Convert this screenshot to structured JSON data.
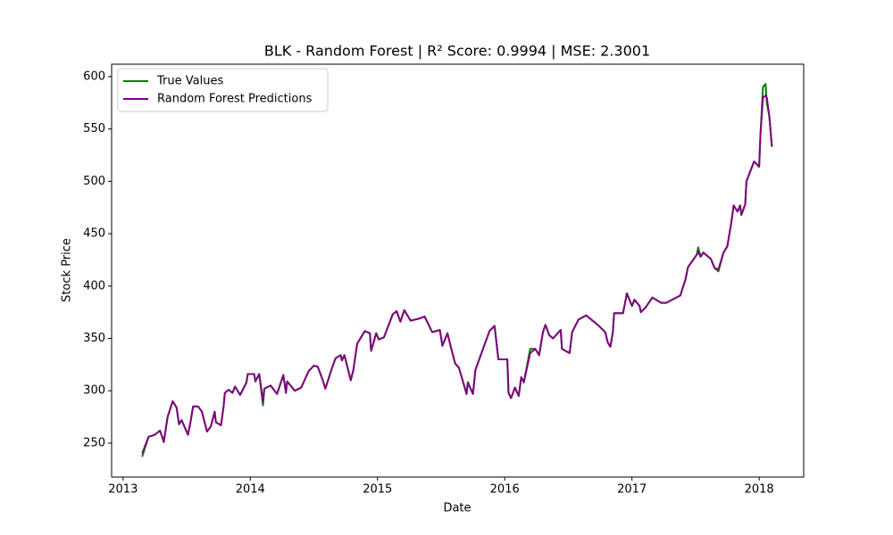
{
  "chart_data": {
    "type": "line",
    "title": "BLK - Random Forest | R² Score: 0.9994 | MSE: 2.3001",
    "xlabel": "Date",
    "ylabel": "Stock Price",
    "x": [
      2013.15,
      2013.2,
      2013.25,
      2013.29,
      2013.31,
      2013.32,
      2013.35,
      2013.39,
      2013.42,
      2013.44,
      2013.46,
      2013.51,
      2013.53,
      2013.55,
      2013.59,
      2013.62,
      2013.66,
      2013.69,
      2013.72,
      2013.73,
      2013.77,
      2013.79,
      2013.8,
      2013.83,
      2013.86,
      2013.88,
      2013.92,
      2013.97,
      2013.98,
      2014.03,
      2014.04,
      2014.07,
      2014.1,
      2014.11,
      2014.16,
      2014.21,
      2014.26,
      2014.28,
      2014.29,
      2014.35,
      2014.4,
      2014.46,
      2014.5,
      2014.53,
      2014.57,
      2014.59,
      2014.64,
      2014.67,
      2014.71,
      2014.72,
      2014.74,
      2014.79,
      2014.81,
      2014.84,
      2014.9,
      2014.94,
      2014.95,
      2014.99,
      2015.01,
      2015.05,
      2015.12,
      2015.15,
      2015.18,
      2015.21,
      2015.26,
      2015.33,
      2015.37,
      2015.43,
      2015.49,
      2015.51,
      2015.55,
      2015.58,
      2015.61,
      2015.64,
      2015.7,
      2015.71,
      2015.75,
      2015.77,
      2015.82,
      2015.88,
      2015.92,
      2015.95,
      2016.02,
      2016.03,
      2016.05,
      2016.08,
      2016.11,
      2016.13,
      2016.15,
      2016.2,
      2016.24,
      2016.27,
      2016.3,
      2016.32,
      2016.35,
      2016.38,
      2016.44,
      2016.45,
      2016.51,
      2016.53,
      2016.58,
      2016.64,
      2016.74,
      2016.79,
      2016.81,
      2016.83,
      2016.85,
      2016.86,
      2016.93,
      2016.96,
      2017.0,
      2017.02,
      2017.06,
      2017.07,
      2017.11,
      2017.16,
      2017.23,
      2017.27,
      2017.38,
      2017.42,
      2017.44,
      2017.51,
      2017.52,
      2017.54,
      2017.56,
      2017.62,
      2017.65,
      2017.68,
      2017.72,
      2017.75,
      2017.78,
      2017.8,
      2017.83,
      2017.85,
      2017.86,
      2017.89,
      2017.9,
      2017.96,
      2018.0,
      2018.01,
      2018.03,
      2018.05,
      2018.06,
      2018.08,
      2018.1
    ],
    "series": [
      {
        "name": "True Values",
        "color": "#008000",
        "values": [
          237,
          256,
          258,
          262,
          255,
          251,
          275,
          290,
          284,
          268,
          272,
          258,
          270,
          285,
          285,
          280,
          261,
          266,
          280,
          270,
          267,
          285,
          298,
          301,
          298,
          304,
          296,
          308,
          316,
          316,
          309,
          316,
          286,
          302,
          305,
          297,
          315,
          298,
          309,
          300,
          303,
          319,
          324,
          323,
          310,
          302,
          321,
          331,
          334,
          329,
          334,
          310,
          320,
          345,
          357,
          355,
          338,
          355,
          349,
          351,
          373,
          376,
          366,
          377,
          367,
          369,
          371,
          356,
          358,
          343,
          355,
          340,
          326,
          322,
          297,
          308,
          297,
          320,
          337,
          357,
          362,
          330,
          330,
          298,
          293,
          303,
          295,
          313,
          308,
          340,
          340,
          334,
          356,
          363,
          353,
          350,
          358,
          340,
          336,
          356,
          368,
          372,
          362,
          356,
          346,
          342,
          356,
          374,
          374,
          393,
          381,
          387,
          381,
          375,
          380,
          389,
          384,
          384,
          391,
          406,
          418,
          430,
          437,
          428,
          432,
          426,
          417,
          414,
          432,
          438,
          460,
          477,
          471,
          477,
          468,
          478,
          500,
          519,
          514,
          545,
          590,
          593,
          575,
          562,
          533
        ]
      },
      {
        "name": "Random Forest Predictions",
        "color": "#800080",
        "values": [
          240,
          256,
          258,
          262,
          255,
          251,
          275,
          290,
          284,
          268,
          272,
          258,
          270,
          285,
          285,
          280,
          261,
          266,
          280,
          270,
          267,
          285,
          298,
          301,
          298,
          304,
          296,
          308,
          316,
          316,
          309,
          316,
          290,
          302,
          305,
          297,
          315,
          298,
          309,
          300,
          303,
          319,
          324,
          323,
          310,
          302,
          321,
          331,
          334,
          329,
          334,
          310,
          320,
          345,
          357,
          355,
          338,
          355,
          349,
          351,
          373,
          376,
          366,
          377,
          367,
          369,
          371,
          356,
          358,
          343,
          355,
          340,
          326,
          322,
          297,
          308,
          297,
          320,
          337,
          357,
          362,
          330,
          330,
          298,
          293,
          303,
          295,
          313,
          308,
          336,
          340,
          334,
          356,
          363,
          353,
          350,
          358,
          340,
          336,
          356,
          368,
          372,
          362,
          356,
          346,
          342,
          356,
          374,
          374,
          393,
          381,
          387,
          381,
          375,
          380,
          389,
          384,
          384,
          391,
          406,
          418,
          430,
          433,
          428,
          432,
          426,
          417,
          416,
          432,
          438,
          460,
          477,
          471,
          477,
          468,
          478,
          500,
          519,
          514,
          545,
          580,
          582,
          580,
          562,
          533
        ]
      }
    ],
    "xlim": [
      2012.91,
      2018.35
    ],
    "xticks": [
      2013,
      2014,
      2015,
      2016,
      2017,
      2018
    ],
    "ylim": [
      217.6,
      611.9
    ],
    "yticks": [
      250,
      300,
      350,
      400,
      450,
      500,
      550,
      600
    ],
    "legend": "upper left",
    "grid": false
  }
}
